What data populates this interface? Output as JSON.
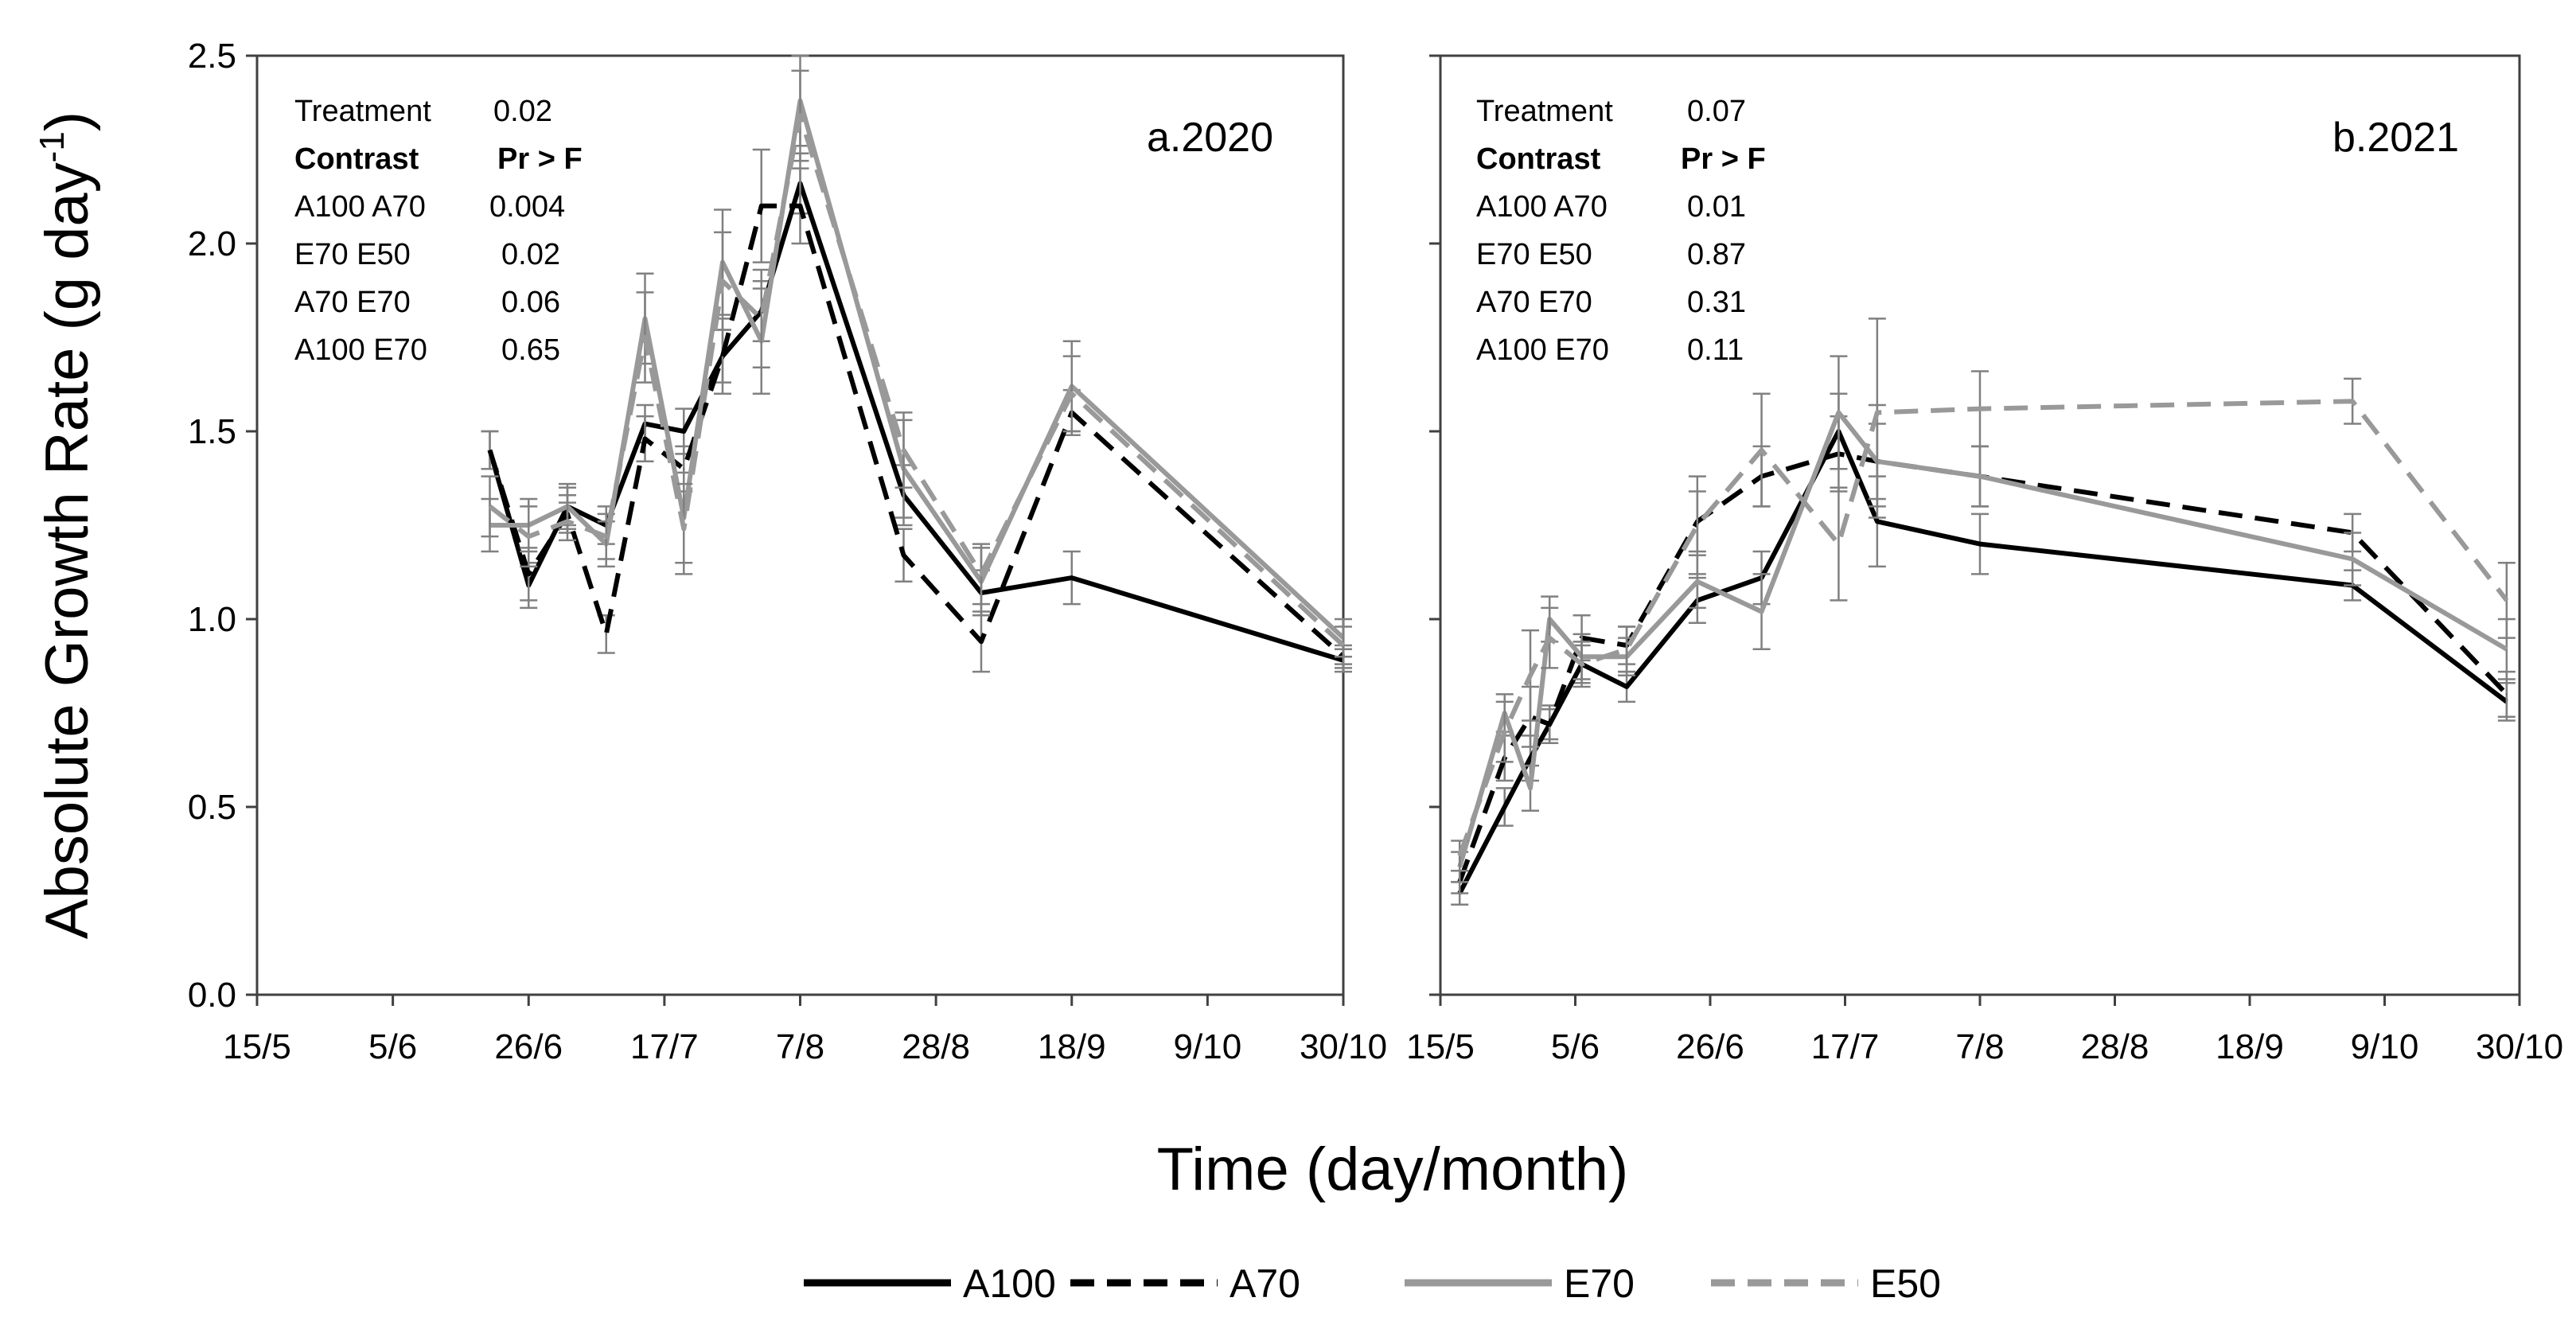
{
  "figure": {
    "ylabel_main": "Absolute Growth Rate (g day",
    "ylabel_sup": "-1",
    "ylabel_close": ")",
    "xlabel": "Time (day/month)"
  },
  "legend": [
    {
      "name": "A100",
      "color": "#000000",
      "dashed": false
    },
    {
      "name": "A70",
      "color": "#000000",
      "dashed": true
    },
    {
      "name": "E70",
      "color": "#999999",
      "dashed": false
    },
    {
      "name": "E50",
      "color": "#999999",
      "dashed": true
    }
  ],
  "chart_data": [
    {
      "type": "line",
      "panel_label": "a.2020",
      "ylim": [
        0,
        2.5
      ],
      "yticks": [
        "0.0",
        "0.5",
        "1.0",
        "1.5",
        "2.0",
        "2.5"
      ],
      "xlim": [
        0,
        168
      ],
      "xticks": [
        {
          "label": "15/5",
          "day": 0
        },
        {
          "label": "5/6",
          "day": 21
        },
        {
          "label": "26/6",
          "day": 42
        },
        {
          "label": "17/7",
          "day": 63
        },
        {
          "label": "7/8",
          "day": 84
        },
        {
          "label": "28/8",
          "day": 105
        },
        {
          "label": "18/9",
          "day": 126
        },
        {
          "label": "9/10",
          "day": 147
        },
        {
          "label": "30/10",
          "day": 168
        }
      ],
      "stats": {
        "treatment_label": "Treatment",
        "treatment_value": "0.02",
        "header_label": "Contrast",
        "header_value": "Pr > F",
        "rows": [
          {
            "label": "A100 A70",
            "value": "0.004"
          },
          {
            "label": "E70 E50",
            "value": "0.02"
          },
          {
            "label": "A70 E70",
            "value": "0.06"
          },
          {
            "label": "A100 E70",
            "value": "0.65"
          }
        ]
      },
      "series": [
        {
          "name": "A100",
          "x": [
            36,
            42,
            48,
            54,
            60,
            66,
            72,
            78,
            84,
            100,
            112,
            126,
            168
          ],
          "y": [
            1.45,
            1.09,
            1.3,
            1.25,
            1.52,
            1.5,
            1.7,
            1.82,
            2.16,
            1.33,
            1.07,
            1.11,
            0.89
          ],
          "err": [
            0.05,
            0.06,
            0.05,
            0.05,
            0.05,
            0.06,
            0.07,
            0.08,
            0.08,
            0.08,
            0.06,
            0.07,
            0.03
          ]
        },
        {
          "name": "A70",
          "x": [
            36,
            42,
            48,
            54,
            60,
            66,
            72,
            78,
            84,
            100,
            112,
            126,
            168
          ],
          "y": [
            1.45,
            1.12,
            1.28,
            0.96,
            1.48,
            1.4,
            1.7,
            2.1,
            2.1,
            1.17,
            0.94,
            1.55,
            0.9
          ],
          "err": [
            0.05,
            0.07,
            0.05,
            0.05,
            0.06,
            0.06,
            0.1,
            0.15,
            0.1,
            0.07,
            0.08,
            0.06,
            0.03
          ]
        },
        {
          "name": "E70",
          "x": [
            36,
            42,
            48,
            54,
            60,
            66,
            72,
            78,
            84,
            100,
            112,
            126,
            168
          ],
          "y": [
            1.25,
            1.25,
            1.3,
            1.2,
            1.8,
            1.27,
            1.95,
            1.74,
            2.38,
            1.4,
            1.1,
            1.62,
            0.95
          ],
          "err": [
            0.07,
            0.07,
            0.06,
            0.06,
            0.12,
            0.12,
            0.14,
            0.14,
            0.12,
            0.13,
            0.09,
            0.12,
            0.05
          ]
        },
        {
          "name": "E50",
          "x": [
            36,
            42,
            48,
            54,
            60,
            66,
            72,
            78,
            84,
            100,
            112,
            126,
            168
          ],
          "y": [
            1.3,
            1.22,
            1.26,
            1.22,
            1.75,
            1.24,
            1.9,
            1.8,
            2.34,
            1.45,
            1.12,
            1.6,
            0.93
          ],
          "err": [
            0.08,
            0.08,
            0.05,
            0.06,
            0.12,
            0.12,
            0.13,
            0.13,
            0.12,
            0.1,
            0.08,
            0.1,
            0.05
          ]
        }
      ]
    },
    {
      "type": "line",
      "panel_label": "b.2021",
      "ylim": [
        0,
        2.5
      ],
      "yticks": [
        "0.0",
        "0.5",
        "1.0",
        "1.5",
        "2.0",
        "2.5"
      ],
      "xlim": [
        0,
        168
      ],
      "xticks": [
        {
          "label": "15/5",
          "day": 0
        },
        {
          "label": "5/6",
          "day": 21
        },
        {
          "label": "26/6",
          "day": 42
        },
        {
          "label": "17/7",
          "day": 63
        },
        {
          "label": "7/8",
          "day": 84
        },
        {
          "label": "28/8",
          "day": 105
        },
        {
          "label": "18/9",
          "day": 126
        },
        {
          "label": "9/10",
          "day": 147
        },
        {
          "label": "30/10",
          "day": 168
        }
      ],
      "stats": {
        "treatment_label": "Treatment",
        "treatment_value": "0.07",
        "header_label": "Contrast",
        "header_value": "Pr > F",
        "rows": [
          {
            "label": "A100 A70",
            "value": "0.01"
          },
          {
            "label": "E70 E50",
            "value": "0.87"
          },
          {
            "label": "A70 E70",
            "value": "0.31"
          },
          {
            "label": "A100 E70",
            "value": "0.11"
          }
        ]
      },
      "series": [
        {
          "name": "A100",
          "x": [
            3,
            10,
            14,
            17,
            22,
            29,
            40,
            50,
            62,
            68,
            84,
            142,
            166
          ],
          "y": [
            0.27,
            0.5,
            0.63,
            0.72,
            0.88,
            0.82,
            1.05,
            1.11,
            1.5,
            1.26,
            1.2,
            1.09,
            0.78
          ],
          "err": [
            0.03,
            0.05,
            0.06,
            0.04,
            0.05,
            0.04,
            0.06,
            0.07,
            0.1,
            0.12,
            0.08,
            0.04,
            0.05
          ]
        },
        {
          "name": "A70",
          "x": [
            3,
            10,
            14,
            17,
            22,
            29,
            40,
            50,
            62,
            68,
            84,
            142,
            166
          ],
          "y": [
            0.3,
            0.63,
            0.74,
            0.72,
            0.95,
            0.93,
            1.26,
            1.38,
            1.44,
            1.42,
            1.38,
            1.23,
            0.8
          ],
          "err": [
            0.03,
            0.06,
            0.08,
            0.05,
            0.06,
            0.05,
            0.08,
            0.08,
            0.1,
            0.1,
            0.08,
            0.05,
            0.06
          ]
        },
        {
          "name": "E70",
          "x": [
            3,
            10,
            14,
            17,
            22,
            29,
            40,
            50,
            62,
            68,
            84,
            142,
            166
          ],
          "y": [
            0.34,
            0.75,
            0.55,
            1.0,
            0.9,
            0.9,
            1.1,
            1.02,
            1.55,
            1.42,
            1.38,
            1.16,
            0.92
          ],
          "err": [
            0.04,
            0.05,
            0.06,
            0.06,
            0.06,
            0.05,
            0.07,
            0.1,
            0.15,
            0.15,
            0.08,
            0.07,
            0.08
          ]
        },
        {
          "name": "E50",
          "x": [
            3,
            10,
            14,
            17,
            22,
            29,
            40,
            50,
            62,
            68,
            84,
            142,
            166
          ],
          "y": [
            0.37,
            0.7,
            0.85,
            0.95,
            0.88,
            0.92,
            1.25,
            1.45,
            1.2,
            1.55,
            1.56,
            1.58,
            1.05
          ],
          "err": [
            0.04,
            0.08,
            0.12,
            0.08,
            0.06,
            0.06,
            0.13,
            0.15,
            0.15,
            0.25,
            0.1,
            0.06,
            0.1
          ]
        }
      ]
    }
  ]
}
